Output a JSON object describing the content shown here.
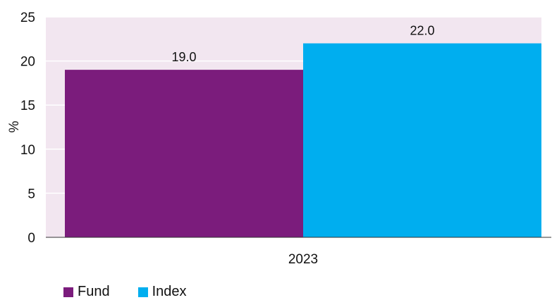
{
  "chart_data": {
    "type": "bar",
    "title": "",
    "categories": [
      "2023"
    ],
    "series": [
      {
        "name": "Fund",
        "values": [
          19.0
        ],
        "color": "#7B1C7C"
      },
      {
        "name": "Index",
        "values": [
          22.0
        ],
        "color": "#00AEEF"
      }
    ],
    "ylabel": "%",
    "xlabel": "",
    "ylim": [
      0,
      25
    ],
    "yticks": [
      0,
      5,
      10,
      15,
      20,
      25
    ],
    "data_labels": [
      "19.0",
      "22.0"
    ],
    "plot_background": "#F2E6F0",
    "grid": true,
    "legend_position": "bottom-left"
  }
}
